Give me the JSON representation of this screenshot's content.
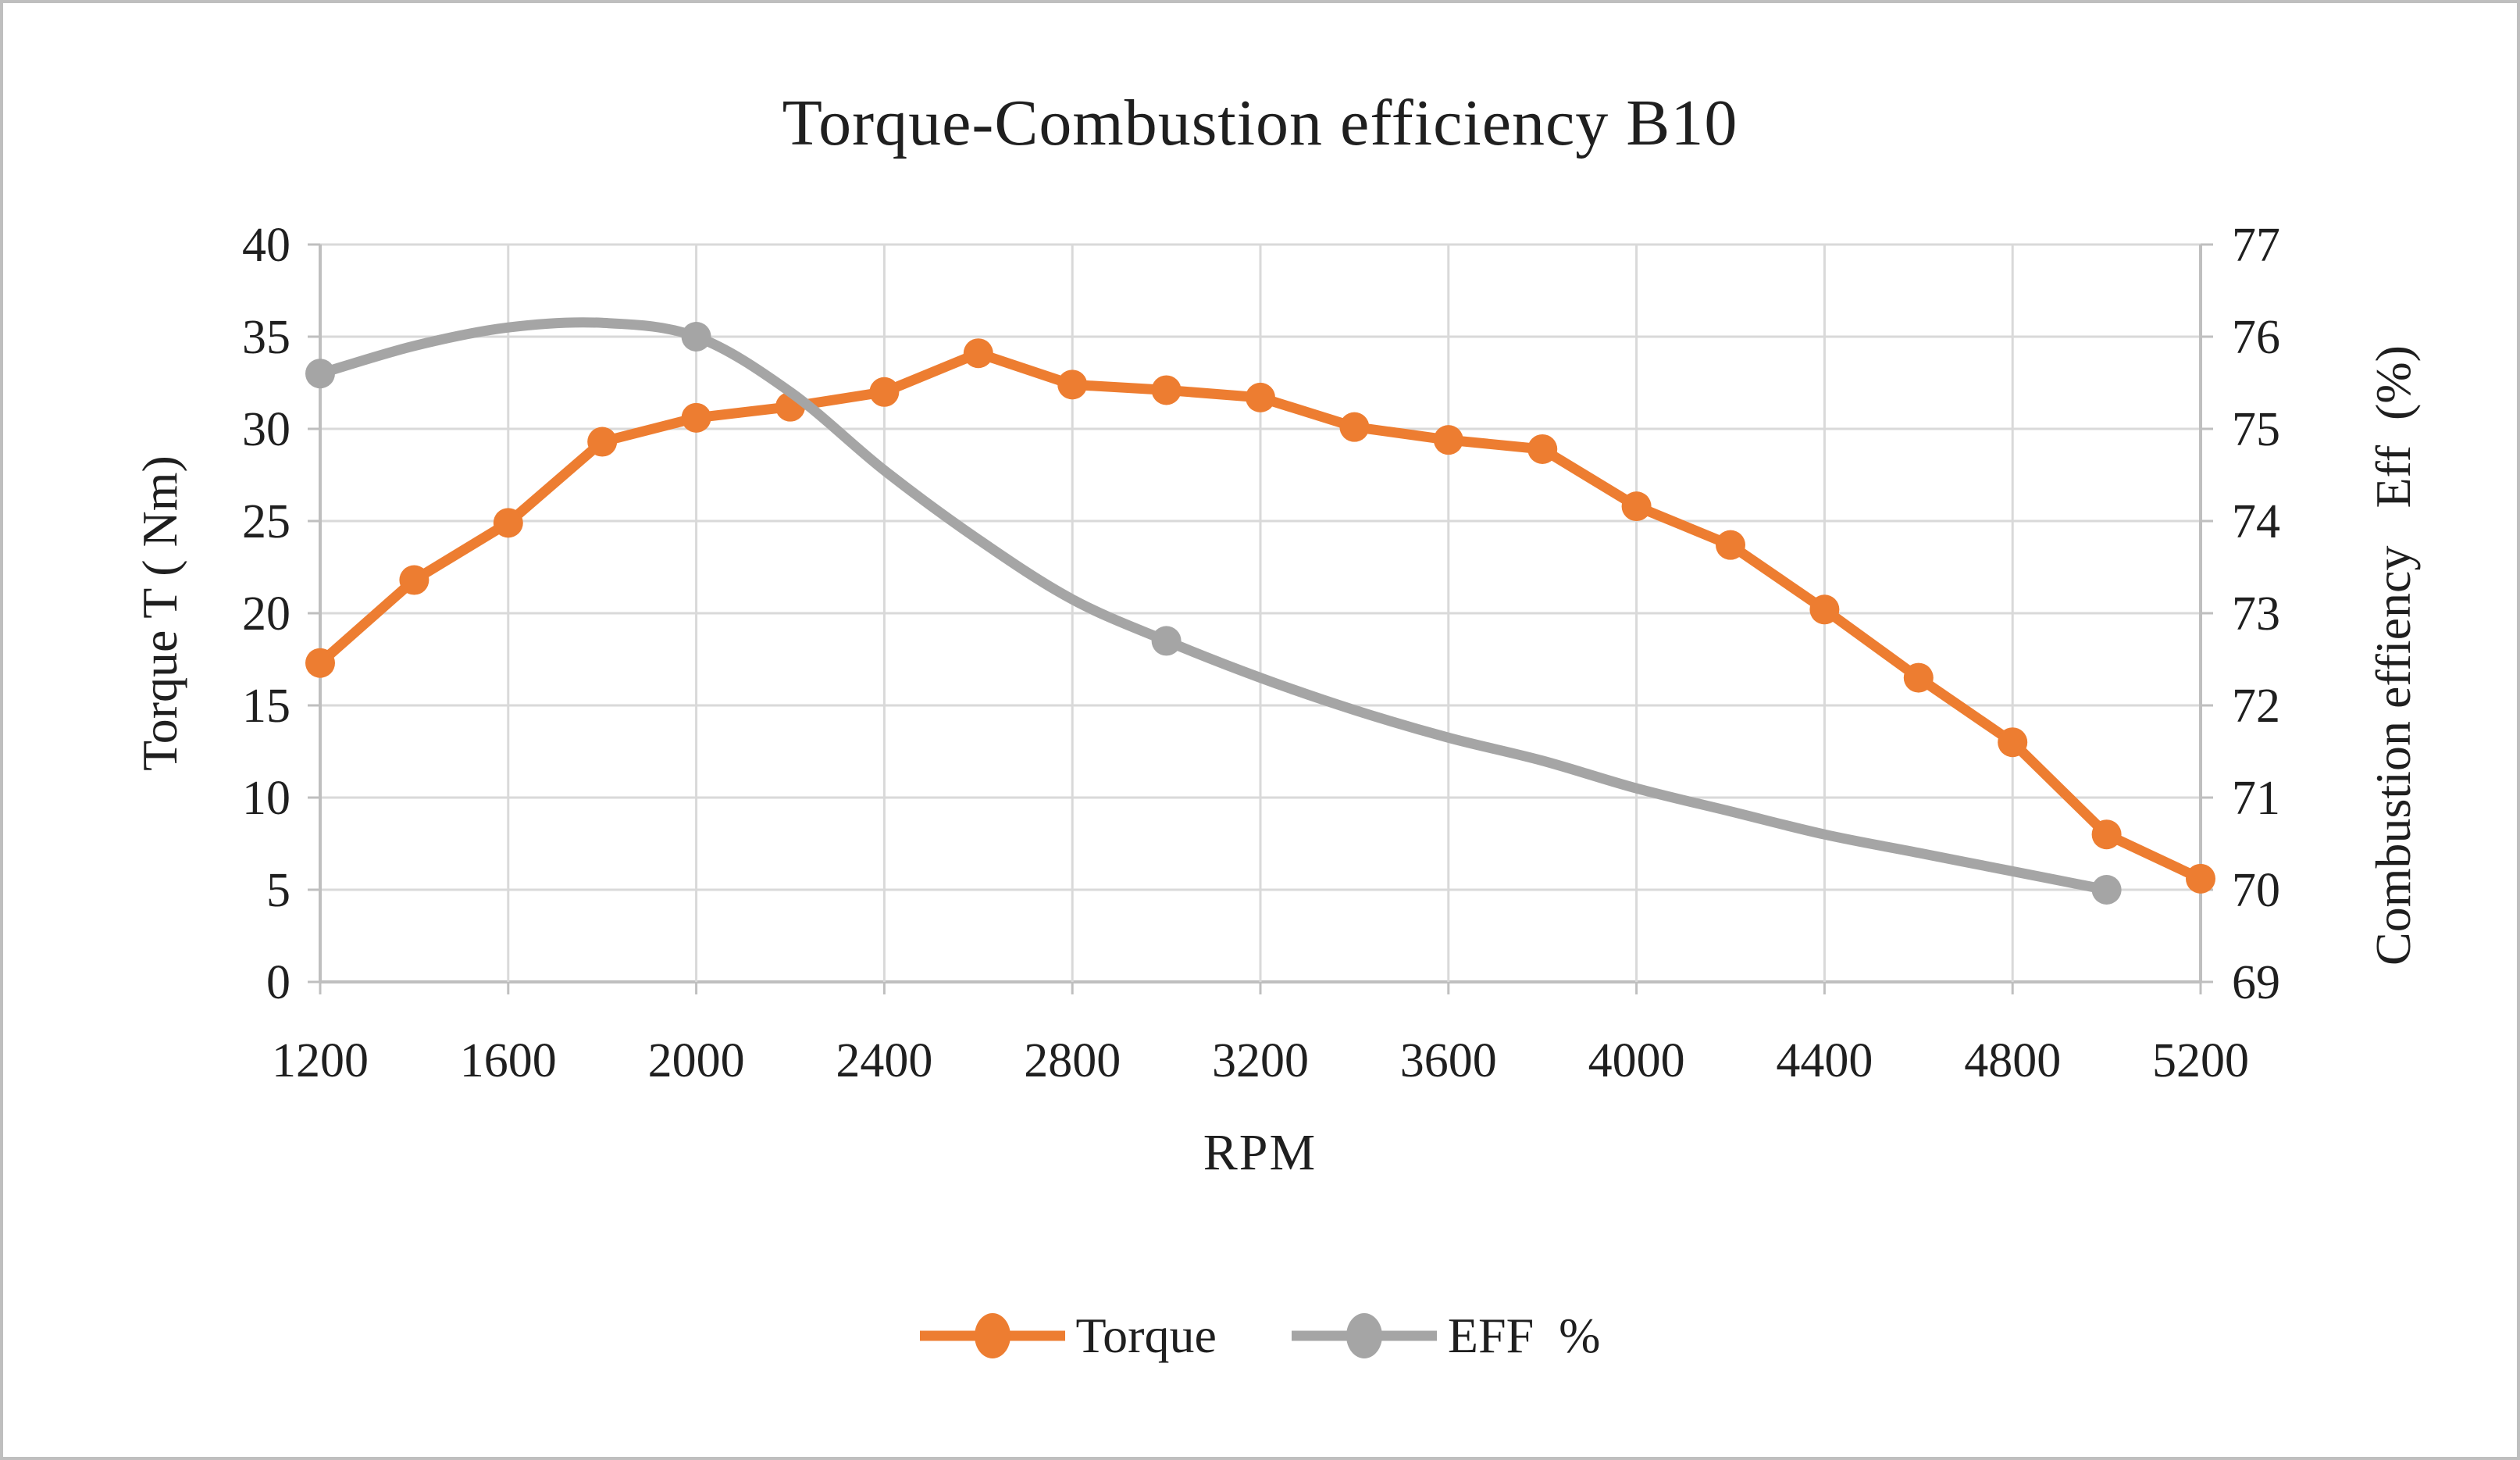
{
  "title": "Torque-Combustion efficiency B10",
  "axes": {
    "x_label": "RPM",
    "y_left_label": "Torque T ( Nm)",
    "y_right_label": "Combustion effiency   Eff  (%)"
  },
  "legend": [
    {
      "label": "Torque",
      "color": "#ED7D31"
    },
    {
      "label": "EFF  %",
      "color": "#A5A5A5"
    }
  ],
  "colors": {
    "torque_series": "#ED7D31",
    "eff_series": "#A5A5A5",
    "gridline": "#D9D9D9",
    "axis_line": "#BFBFBF",
    "text": "#1F1F1F",
    "frame_border": "#BFBFBF",
    "background": "#FFFFFF"
  },
  "chart_data": {
    "type": "line",
    "title": "Torque-Combustion efficiency B10",
    "xlabel": "RPM",
    "ylabel_left": "Torque T ( Nm)",
    "ylabel_right": "Combustion effiency Eff (%)",
    "xlim": [
      1200,
      5200
    ],
    "ylim_left": [
      0,
      40
    ],
    "ylim_right": [
      69,
      77
    ],
    "x_ticks": [
      1200,
      1600,
      2000,
      2400,
      2800,
      3200,
      3600,
      4000,
      4400,
      4800,
      5200
    ],
    "left_ticks": [
      0,
      5,
      10,
      15,
      20,
      25,
      30,
      35,
      40
    ],
    "right_ticks": [
      69,
      70,
      71,
      72,
      73,
      74,
      75,
      76,
      77
    ],
    "grid": true,
    "legend_position": "bottom",
    "series": [
      {
        "name": "Torque",
        "axis": "left",
        "color": "#ED7D31",
        "smooth": false,
        "markers": "all",
        "x": [
          1200,
          1400,
          1600,
          1800,
          2000,
          2200,
          2400,
          2600,
          2800,
          3000,
          3200,
          3400,
          3600,
          3800,
          4000,
          4200,
          4400,
          4600,
          4800,
          5000,
          5200
        ],
        "values": [
          17.3,
          21.8,
          24.9,
          29.3,
          30.6,
          31.2,
          32.0,
          34.1,
          32.4,
          32.1,
          31.7,
          30.1,
          29.4,
          28.9,
          25.8,
          23.7,
          20.2,
          16.5,
          13.0,
          8.0,
          5.6
        ]
      },
      {
        "name": "EFF %",
        "axis": "right",
        "color": "#A5A5A5",
        "smooth": true,
        "markers": "subset",
        "x": [
          1200,
          1400,
          1600,
          1800,
          2000,
          2200,
          2400,
          2600,
          2800,
          3000,
          3200,
          3400,
          3600,
          3800,
          4000,
          4200,
          4400,
          4600,
          4800,
          5000
        ],
        "values": [
          75.6,
          75.9,
          76.1,
          76.15,
          76.0,
          75.4,
          74.55,
          73.8,
          73.15,
          72.7,
          72.3,
          71.95,
          71.65,
          71.4,
          71.1,
          70.85,
          70.6,
          70.4,
          70.2,
          70.0
        ],
        "marker_x": [
          1200,
          2000,
          3000,
          5000
        ],
        "marker_values": [
          75.6,
          76.0,
          72.7,
          70.0
        ]
      }
    ]
  }
}
